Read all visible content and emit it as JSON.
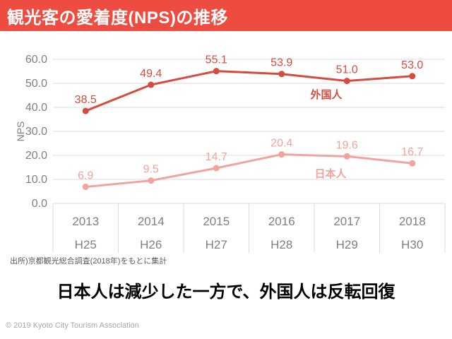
{
  "slide": {
    "title": "観光客の愛着度(NPS)の推移",
    "source": "出所)京都観光総合調査(2018年)をもとに集計",
    "message": "日本人は減少した一方で、外国人は反転回復",
    "footer": "© 2019 Kyoto City Tourism Association"
  },
  "colors": {
    "header_bg": "#EE4C41",
    "header_text": "#FFFFFF",
    "gridline": "#DBDBDB",
    "axis_text": "#808080",
    "source_text": "#595959",
    "message_text": "#000000",
    "footer_text": "#A8A8A8"
  },
  "chart_data": {
    "type": "line",
    "title": "観光客の愛着度(NPS)の推移",
    "xlabel": "",
    "ylabel": "NPS",
    "ylim": [
      0,
      60
    ],
    "ytick_step": 10,
    "grid": true,
    "legend_position": "inline-labels",
    "categories": [
      {
        "year": "2013",
        "era": "H25"
      },
      {
        "year": "2014",
        "era": "H26"
      },
      {
        "year": "2015",
        "era": "H27"
      },
      {
        "year": "2016",
        "era": "H28"
      },
      {
        "year": "2017",
        "era": "H29"
      },
      {
        "year": "2018",
        "era": "H30"
      }
    ],
    "series": [
      {
        "name": "外国人",
        "values": [
          38.5,
          49.4,
          55.1,
          53.9,
          51.0,
          53.0
        ],
        "color": "#D74B3E",
        "label_x": 462,
        "label_y": 139
      },
      {
        "name": "日本人",
        "values": [
          6.9,
          9.5,
          14.7,
          20.4,
          19.6,
          16.7
        ],
        "color": "#F2A39C",
        "label_x": 468,
        "label_y": 251
      }
    ]
  }
}
